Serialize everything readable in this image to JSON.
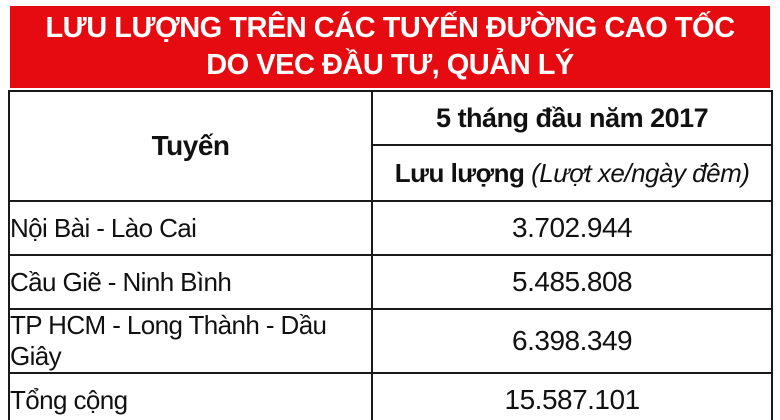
{
  "banner": {
    "title_line1": "LƯU LƯỢNG TRÊN CÁC TUYẾN ĐƯỜNG CAO TỐC",
    "title_line2": "DO VEC ĐẦU TƯ, QUẢN LÝ",
    "background_color": "#e50b10",
    "text_color": "#ffffff"
  },
  "table": {
    "border_color": "#1a1a1a",
    "route_column_header": "Tuyến",
    "period_header": "5 tháng đầu năm 2017",
    "metric_header": "Lưu lượng",
    "metric_unit": "(Lượt xe/ngày đêm)",
    "rows": [
      {
        "route": "Nội Bài - Lào Cai",
        "value": "3.702.944"
      },
      {
        "route": "Cầu Giẽ - Ninh Bình",
        "value": "5.485.808"
      },
      {
        "route": "TP HCM - Long Thành - Dầu Giây",
        "value": "6.398.349"
      }
    ],
    "total_row": {
      "route": "Tổng cộng",
      "value": "15.587.101"
    }
  },
  "chart_data": {
    "type": "table",
    "title": "LƯU LƯỢNG TRÊN CÁC TUYẾN ĐƯỜNG CAO TỐC DO VEC ĐẦU TƯ, QUẢN LÝ",
    "columns": [
      "Tuyến",
      "5 tháng đầu năm 2017 — Lưu lượng (Lượt xe/ngày đêm)"
    ],
    "categories": [
      "Nội Bài - Lào Cai",
      "Cầu Giẽ - Ninh Bình",
      "TP HCM - Long Thành - Dầu Giây",
      "Tổng cộng"
    ],
    "values": [
      3702944,
      5485808,
      6398349,
      15587101
    ]
  }
}
